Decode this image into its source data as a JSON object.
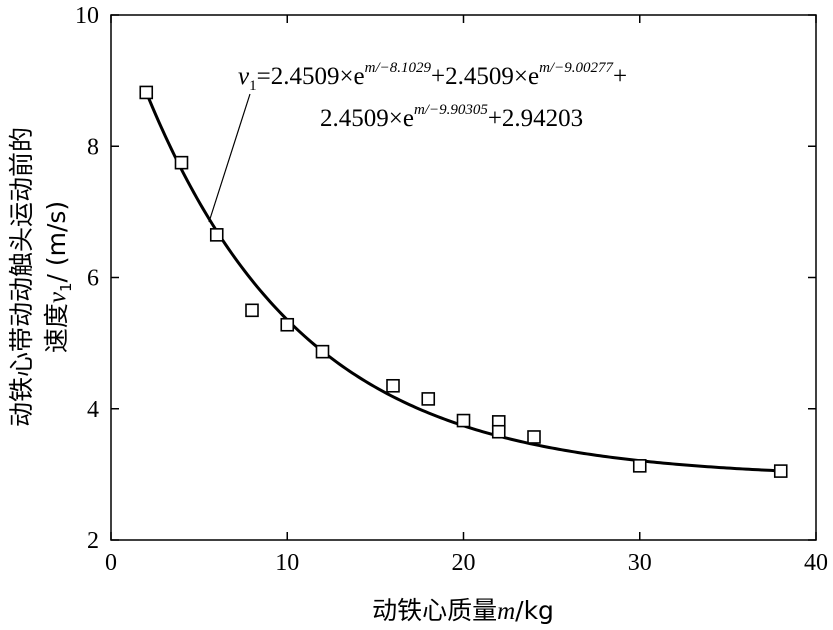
{
  "chart_data": {
    "type": "scatter",
    "xlabel": {
      "prefix": "动铁心质量",
      "var": "m",
      "unit": "/kg"
    },
    "ylabel": {
      "line1": "动铁心带动动触头运动前的",
      "line2_prefix": "速度",
      "line2_var": "v",
      "line2_sub": "1",
      "line2_suffix": "/ (m/s)"
    },
    "xlim": [
      0,
      40
    ],
    "ylim": [
      2,
      10
    ],
    "x_ticks": [
      0,
      10,
      20,
      30,
      40
    ],
    "y_ticks": [
      2,
      4,
      6,
      8,
      10
    ],
    "grid": false,
    "series": [
      {
        "marker": "square",
        "x": [
          2,
          4,
          6,
          8,
          10,
          12,
          16,
          18,
          20,
          22,
          22,
          24,
          30,
          38
        ],
        "y": [
          8.82,
          7.75,
          6.65,
          5.5,
          5.28,
          4.87,
          4.35,
          4.15,
          3.82,
          3.8,
          3.65,
          3.57,
          3.13,
          3.05
        ]
      }
    ],
    "fit": {
      "a": [
        2.4509,
        2.4509,
        2.4509
      ],
      "t": [
        -8.1029,
        -9.00277,
        -9.90305
      ],
      "c": 2.94203,
      "x_range": [
        2,
        38
      ]
    },
    "annotation": {
      "line1": {
        "var": "v",
        "sub": "1",
        "t1": "=2.4509×e",
        "e1": "m/−8.1029",
        "t2": "+2.4509×e",
        "e2": "m/−9.00277",
        "t3": "+"
      },
      "line2": {
        "t1": "2.4509×e",
        "e1": "m/−9.90305",
        "t2": "+2.94203"
      }
    }
  }
}
